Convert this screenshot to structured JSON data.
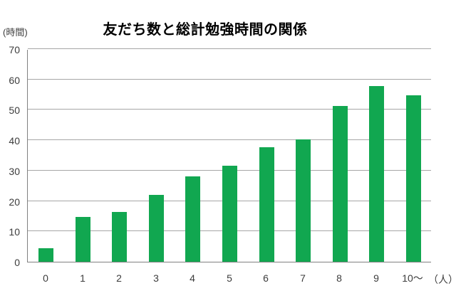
{
  "chart_data": {
    "type": "bar",
    "title": "友だち数と総計勉強時間の関係",
    "y_axis_unit": "(時間)",
    "x_axis_unit": "（人）",
    "categories": [
      "0",
      "1",
      "2",
      "3",
      "4",
      "5",
      "6",
      "7",
      "8",
      "9",
      "10～"
    ],
    "values": [
      4.5,
      14.8,
      16.3,
      22.1,
      28.2,
      31.5,
      37.6,
      40.2,
      51.2,
      57.8,
      54.8
    ],
    "ylim": [
      0,
      70
    ],
    "yticks": [
      0,
      10,
      20,
      30,
      40,
      50,
      60,
      70
    ],
    "grid": true,
    "legend": "none",
    "colors": {
      "bar": "#11a750",
      "gridline": "#a6a6a6",
      "axis": "#808080",
      "tick_text": "#3c3c3c",
      "title_text": "#000000"
    }
  }
}
